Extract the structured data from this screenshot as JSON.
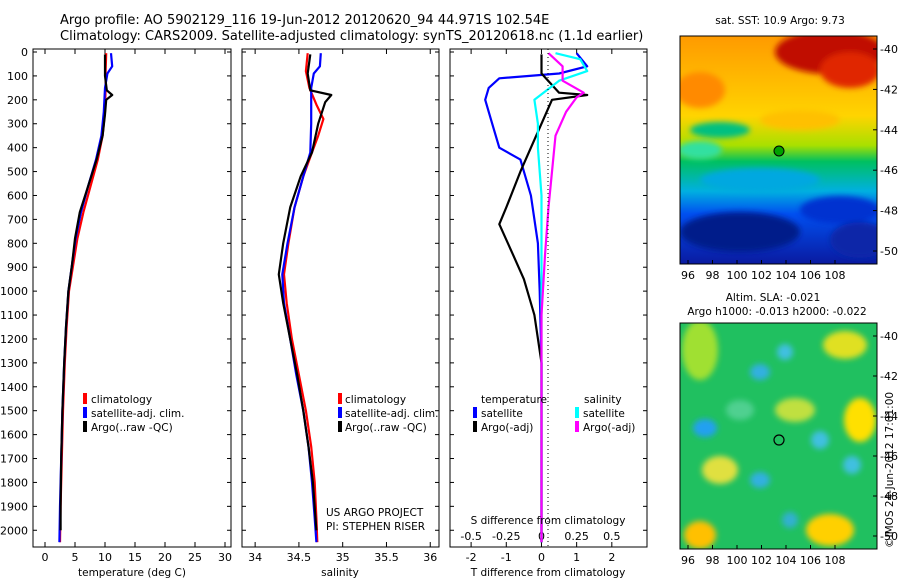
{
  "header": {
    "line1": "Argo profile: AO 5902129_116 19-Jun-2012 20120620_94 44.971S 102.54E",
    "line2": "Climatology: CARS2009. Satellite-adjusted climatology: synTS_20120618.nc (1.1d earlier)"
  },
  "colors": {
    "climatology": "#ff0000",
    "satellite": "#0000ff",
    "argo": "#000000",
    "sal_satellite": "#00ffff",
    "sal_argo": "#ff00ff"
  },
  "depth_axis": {
    "ticks": [
      0,
      100,
      200,
      300,
      400,
      500,
      600,
      700,
      800,
      900,
      1000,
      1100,
      1200,
      1300,
      1400,
      1500,
      1600,
      1700,
      1800,
      1900,
      2000
    ],
    "range": [
      0,
      2070
    ]
  },
  "chart_data": [
    {
      "id": "temperature",
      "type": "line",
      "xlabel": "temperature (deg C)",
      "xlim": [
        -2,
        31
      ],
      "xticks": [
        0,
        5,
        10,
        15,
        20,
        25,
        30
      ],
      "ylim": [
        0,
        2070
      ],
      "legend": [
        "climatology",
        "satellite-adj. clim.",
        "Argo(..raw -QC)"
      ],
      "series": [
        {
          "name": "climatology",
          "key": "climatology",
          "points": [
            [
              10.2,
              5
            ],
            [
              10.1,
              80
            ],
            [
              10.1,
              150
            ],
            [
              10.0,
              250
            ],
            [
              9.6,
              350
            ],
            [
              8.8,
              450
            ],
            [
              7.6,
              560
            ],
            [
              6.4,
              670
            ],
            [
              5.4,
              780
            ],
            [
              4.7,
              890
            ],
            [
              4.0,
              1000
            ],
            [
              3.6,
              1150
            ],
            [
              3.3,
              1300
            ],
            [
              3.0,
              1500
            ],
            [
              2.8,
              1700
            ],
            [
              2.6,
              1900
            ],
            [
              2.5,
              2050
            ]
          ]
        },
        {
          "name": "satellite-adj. clim.",
          "key": "satellite",
          "points": [
            [
              11.0,
              5
            ],
            [
              11.2,
              60
            ],
            [
              10.4,
              90
            ],
            [
              10.0,
              150
            ],
            [
              9.8,
              250
            ],
            [
              9.4,
              350
            ],
            [
              8.5,
              450
            ],
            [
              7.2,
              560
            ],
            [
              6.0,
              670
            ],
            [
              5.1,
              780
            ],
            [
              4.5,
              890
            ],
            [
              3.9,
              1000
            ],
            [
              3.5,
              1150
            ],
            [
              3.2,
              1300
            ],
            [
              2.9,
              1500
            ],
            [
              2.7,
              1700
            ],
            [
              2.5,
              1900
            ],
            [
              2.4,
              2050
            ]
          ]
        },
        {
          "name": "Argo(..raw -QC)",
          "key": "argo",
          "points": [
            [
              10.0,
              10
            ],
            [
              10.0,
              100
            ],
            [
              10.3,
              160
            ],
            [
              11.2,
              180
            ],
            [
              10.2,
              200
            ],
            [
              10.0,
              260
            ],
            [
              9.6,
              350
            ],
            [
              8.6,
              450
            ],
            [
              7.2,
              560
            ],
            [
              5.8,
              670
            ],
            [
              5.0,
              780
            ],
            [
              4.5,
              890
            ],
            [
              3.9,
              1000
            ],
            [
              3.5,
              1150
            ],
            [
              3.2,
              1300
            ],
            [
              2.9,
              1500
            ],
            [
              2.7,
              1700
            ],
            [
              2.6,
              1900
            ],
            [
              2.6,
              2000
            ]
          ]
        }
      ]
    },
    {
      "id": "salinity",
      "type": "line",
      "xlabel": "salinity",
      "xlim": [
        33.85,
        36.1
      ],
      "xticks": [
        34,
        34.5,
        35,
        35.5,
        36
      ],
      "xticklabels": [
        "34",
        "34.5",
        "35",
        "35.5",
        "36"
      ],
      "ylim": [
        0,
        2070
      ],
      "legend": [
        "climatology",
        "satellite-adj. clim.",
        "Argo(..raw -QC)"
      ],
      "series": [
        {
          "name": "climatology",
          "key": "climatology",
          "points": [
            [
              34.6,
              5
            ],
            [
              34.58,
              80
            ],
            [
              34.62,
              150
            ],
            [
              34.7,
              220
            ],
            [
              34.78,
              280
            ],
            [
              34.72,
              350
            ],
            [
              34.65,
              420
            ],
            [
              34.55,
              520
            ],
            [
              34.45,
              650
            ],
            [
              34.38,
              800
            ],
            [
              34.33,
              930
            ],
            [
              34.36,
              1050
            ],
            [
              34.42,
              1200
            ],
            [
              34.5,
              1350
            ],
            [
              34.58,
              1500
            ],
            [
              34.64,
              1650
            ],
            [
              34.68,
              1800
            ],
            [
              34.7,
              1950
            ],
            [
              34.71,
              2050
            ]
          ]
        },
        {
          "name": "satellite-adj. clim.",
          "key": "satellite",
          "points": [
            [
              34.75,
              5
            ],
            [
              34.74,
              60
            ],
            [
              34.67,
              90
            ],
            [
              34.64,
              150
            ],
            [
              34.64,
              300
            ],
            [
              34.63,
              420
            ],
            [
              34.55,
              520
            ],
            [
              34.45,
              650
            ],
            [
              34.37,
              800
            ],
            [
              34.31,
              930
            ],
            [
              34.33,
              1050
            ],
            [
              34.4,
              1200
            ],
            [
              34.47,
              1350
            ],
            [
              34.55,
              1500
            ],
            [
              34.61,
              1650
            ],
            [
              34.65,
              1800
            ],
            [
              34.68,
              1950
            ],
            [
              34.7,
              2050
            ]
          ]
        },
        {
          "name": "Argo(..raw -QC)",
          "key": "argo",
          "points": [
            [
              34.63,
              10
            ],
            [
              34.6,
              90
            ],
            [
              34.63,
              160
            ],
            [
              34.87,
              180
            ],
            [
              34.8,
              210
            ],
            [
              34.72,
              300
            ],
            [
              34.65,
              420
            ],
            [
              34.52,
              520
            ],
            [
              34.4,
              650
            ],
            [
              34.32,
              800
            ],
            [
              34.27,
              930
            ],
            [
              34.32,
              1050
            ],
            [
              34.4,
              1200
            ],
            [
              34.48,
              1350
            ],
            [
              34.55,
              1500
            ],
            [
              34.61,
              1650
            ],
            [
              34.66,
              1800
            ],
            [
              34.69,
              1950
            ],
            [
              34.7,
              2000
            ]
          ]
        }
      ]
    },
    {
      "id": "differences",
      "type": "line",
      "xlabel": "T difference from climatology",
      "xlabel2": "S difference from climatology",
      "xlim": [
        -2.6,
        3.0
      ],
      "xticks": [
        -2,
        -1,
        0,
        1,
        2
      ],
      "top_ticks": [
        -0.5,
        -0.25,
        0,
        0.25,
        0.5
      ],
      "top_ticklabels": [
        "-0.5",
        "-0.25",
        "0",
        "0.25",
        "0.5"
      ],
      "top_scale": 4,
      "ylim": [
        0,
        2070
      ],
      "legend_left_title": "temperature",
      "legend_right_title": "salinity",
      "legend_left": [
        "satellite",
        "Argo(-adj)"
      ],
      "legend_right": [
        "satellite",
        "Argo(-adj)"
      ],
      "series": [
        {
          "name": "satellite",
          "key": "satellite",
          "points": [
            [
              1.0,
              5
            ],
            [
              1.3,
              60
            ],
            [
              0.5,
              90
            ],
            [
              -1.2,
              110
            ],
            [
              -1.5,
              150
            ],
            [
              -1.6,
              200
            ],
            [
              -1.4,
              300
            ],
            [
              -1.2,
              400
            ],
            [
              -0.6,
              450
            ],
            [
              -0.3,
              600
            ],
            [
              -0.1,
              800
            ],
            [
              -0.05,
              1000
            ],
            [
              0.0,
              1300
            ],
            [
              0.0,
              2050
            ]
          ]
        },
        {
          "name": "Argo(-adj)",
          "key": "argo",
          "points": [
            [
              0.0,
              10
            ],
            [
              0.0,
              90
            ],
            [
              0.5,
              170
            ],
            [
              1.3,
              180
            ],
            [
              0.3,
              200
            ],
            [
              0.0,
              300
            ],
            [
              -0.3,
              400
            ],
            [
              -0.6,
              500
            ],
            [
              -1.0,
              650
            ],
            [
              -1.2,
              720
            ],
            [
              -0.8,
              850
            ],
            [
              -0.5,
              950
            ],
            [
              -0.2,
              1100
            ],
            [
              0.0,
              1300
            ],
            [
              0.0,
              2050
            ]
          ]
        },
        {
          "name": "satellite",
          "key": "sal_satellite",
          "points": [
            [
              0.4,
              5
            ],
            [
              1.1,
              30
            ],
            [
              1.3,
              80
            ],
            [
              0.5,
              120
            ],
            [
              -0.2,
              200
            ],
            [
              -0.1,
              300
            ],
            [
              -0.1,
              400
            ],
            [
              0.0,
              600
            ],
            [
              0.0,
              2050
            ]
          ]
        },
        {
          "name": "Argo(-adj)",
          "key": "sal_argo",
          "points": [
            [
              0.2,
              5
            ],
            [
              0.6,
              60
            ],
            [
              0.6,
              120
            ],
            [
              1.2,
              170
            ],
            [
              1.0,
              190
            ],
            [
              0.7,
              250
            ],
            [
              0.4,
              350
            ],
            [
              0.3,
              500
            ],
            [
              0.2,
              650
            ],
            [
              0.1,
              850
            ],
            [
              0.0,
              1100
            ],
            [
              0.0,
              2050
            ]
          ]
        }
      ]
    }
  ],
  "map_top": {
    "title": "sat. SST: 10.9  Argo: 9.73",
    "yticks": [
      "-40",
      "-42",
      "-44",
      "-46",
      "-48",
      "-50"
    ],
    "xticks": [
      "96",
      "98",
      "100",
      "102",
      "104",
      "106",
      "108"
    ]
  },
  "map_bottom": {
    "title1": "Altim. SLA: -0.021",
    "title2": "Argo h1000: -0.013 h2000: -0.022",
    "yticks": [
      "-40",
      "-42",
      "-44",
      "-46",
      "-48",
      "-50"
    ],
    "xticks": [
      "96",
      "98",
      "100",
      "102",
      "104",
      "106",
      "108"
    ]
  },
  "credits": {
    "project": "US ARGO PROJECT",
    "pi": "PI: STEPHEN RISER",
    "timestamp": "©IMOS 24-Jun-2012 17:01:00"
  }
}
